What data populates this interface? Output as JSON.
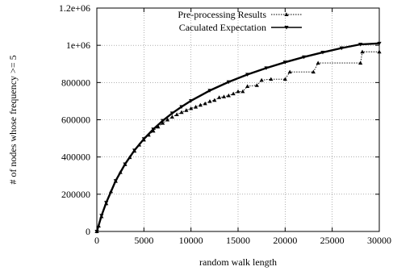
{
  "chart_data": {
    "type": "line",
    "xlabel": "random walk length",
    "ylabel": "# of nodes whose frequency >= 5",
    "xlim": [
      0,
      30000
    ],
    "ylim": [
      0,
      1200000
    ],
    "x_ticks": [
      "0",
      "5000",
      "10000",
      "15000",
      "20000",
      "25000",
      "30000"
    ],
    "y_ticks": [
      "0",
      "200000",
      "400000",
      "600000",
      "800000",
      "1e+06",
      "1.2e+06"
    ],
    "grid": true,
    "legend_position": "top-left",
    "series": [
      {
        "name": "Pre-processing Results",
        "style": "dotted line with triangle markers",
        "x": [
          0,
          200,
          500,
          1000,
          1500,
          2000,
          2500,
          3000,
          3500,
          4000,
          4500,
          5000,
          5500,
          6000,
          6500,
          7000,
          7500,
          8000,
          8500,
          9000,
          9500,
          10000,
          10500,
          11000,
          11500,
          12000,
          12500,
          13000,
          13500,
          14000,
          14500,
          15000,
          15500,
          16000,
          17000,
          17500,
          18500,
          20000,
          20500,
          23000,
          23500,
          28000,
          28200,
          30000
        ],
        "y": [
          0,
          30000,
          80000,
          150000,
          215000,
          270000,
          318000,
          360000,
          398000,
          432000,
          465000,
          492000,
          518000,
          540000,
          562000,
          582000,
          600000,
          615000,
          628000,
          640000,
          651000,
          661000,
          669000,
          679000,
          687000,
          699000,
          705000,
          720000,
          724000,
          730000,
          740000,
          752000,
          752000,
          780000,
          785000,
          813000,
          818000,
          818000,
          857000,
          857000,
          905000,
          905000,
          965000,
          965000
        ]
      },
      {
        "name": "Caculated Expectation",
        "style": "solid line with inverted triangle markers",
        "x": [
          0,
          500,
          1000,
          2000,
          3000,
          4000,
          5000,
          6000,
          7000,
          8000,
          9000,
          10000,
          12000,
          14000,
          16000,
          18000,
          20000,
          22000,
          24000,
          26000,
          28000,
          30000
        ],
        "y": [
          0,
          85000,
          155000,
          272000,
          362000,
          436000,
          497000,
          549000,
          595000,
          635000,
          670000,
          702000,
          757000,
          803000,
          843000,
          878000,
          909000,
          937000,
          962000,
          985000,
          1005000,
          1010000
        ]
      }
    ]
  }
}
